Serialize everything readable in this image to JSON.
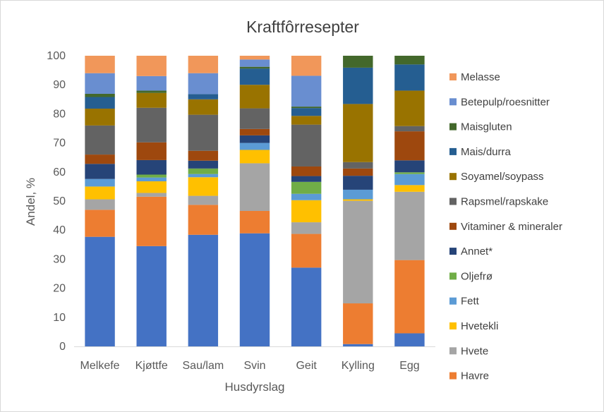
{
  "chart_data": {
    "type": "bar",
    "stacked": true,
    "title": "Kraftfôrresepter",
    "xlabel": "Husdyrslag",
    "ylabel": "Andel, %",
    "ylim": [
      0,
      100
    ],
    "ytick_step": 10,
    "grid": false,
    "legend_position": "right",
    "categories": [
      "Melkefe",
      "Kjøttfe",
      "Sau/lam",
      "Svin",
      "Geit",
      "Kylling",
      "Egg"
    ],
    "series": [
      {
        "name": "",
        "color": "#4472c4",
        "values": [
          37.7,
          34.5,
          38.4,
          38.9,
          27.1,
          0.8,
          4.5
        ]
      },
      {
        "name": "Havre",
        "color": "#ed7d31",
        "values": [
          9.3,
          17.0,
          10.3,
          7.7,
          11.6,
          14.0,
          25.2
        ]
      },
      {
        "name": "Hvete",
        "color": "#a5a5a5",
        "values": [
          3.6,
          1.3,
          3.1,
          16.4,
          4.0,
          35.3,
          23.5
        ]
      },
      {
        "name": "Hvetekli",
        "color": "#ffc000",
        "values": [
          4.4,
          4.0,
          6.4,
          4.6,
          7.6,
          0.5,
          2.3
        ]
      },
      {
        "name": "Fett",
        "color": "#5b9bd5",
        "values": [
          2.6,
          1.3,
          1.1,
          2.4,
          2.2,
          3.3,
          3.8
        ]
      },
      {
        "name": "Oljefrø",
        "color": "#70ad47",
        "values": [
          0.0,
          1.0,
          1.9,
          0.0,
          4.1,
          0.0,
          0.6
        ]
      },
      {
        "name": "Annet*",
        "color": "#264478",
        "values": [
          5.2,
          5.0,
          2.7,
          2.6,
          2.0,
          4.8,
          4.1
        ]
      },
      {
        "name": "Vitaminer & mineraler",
        "color": "#9e480e",
        "values": [
          3.2,
          6.1,
          3.4,
          2.2,
          3.3,
          2.5,
          10.0
        ]
      },
      {
        "name": "Rapsmel/rapskake",
        "color": "#636363",
        "values": [
          10.0,
          11.9,
          12.4,
          7.1,
          14.4,
          2.2,
          1.8
        ]
      },
      {
        "name": "Soyamel/soypass",
        "color": "#997300",
        "values": [
          5.8,
          5.1,
          5.3,
          8.1,
          3.0,
          20.0,
          12.2
        ]
      },
      {
        "name": "Mais/durra",
        "color": "#255e91",
        "values": [
          4.0,
          0.0,
          1.8,
          5.6,
          2.7,
          12.5,
          9.0
        ]
      },
      {
        "name": "Maisgluten",
        "color": "#43682b",
        "values": [
          1.1,
          0.8,
          0.0,
          0.6,
          0.5,
          4.1,
          3.0
        ]
      },
      {
        "name": "Betepulp/roesnitter",
        "color": "#698ed0",
        "values": [
          7.1,
          5.0,
          7.2,
          2.5,
          10.6,
          0.0,
          0.0
        ]
      },
      {
        "name": "Melasse",
        "color": "#f1975a",
        "values": [
          6.0,
          7.0,
          6.0,
          1.3,
          6.9,
          0.0,
          0.0
        ]
      }
    ]
  }
}
